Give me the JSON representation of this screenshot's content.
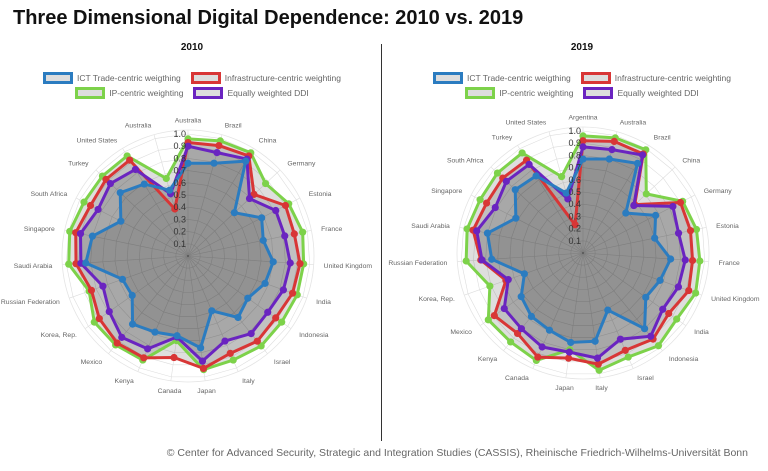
{
  "title": "Three Dimensional Digital Dependence: 2010 vs. 2019",
  "footer": "© Center for Advanced Security, Strategic and Integration Studies (CASSIS), Rheinische Friedrich-Wilhelms-Universität Bonn",
  "legend": [
    {
      "name": "ICT Trade-centric weigthing",
      "color": "#2b7cc0"
    },
    {
      "name": "Infrastructure-centric weighting",
      "color": "#d83636"
    },
    {
      "name": "IP-centric weighting",
      "color": "#7dd24a"
    },
    {
      "name": "Equally weighted DDI",
      "color": "#6a24c0"
    }
  ],
  "chart_data": [
    {
      "type": "radar",
      "title": "2010",
      "rlim": [
        0,
        1.0
      ],
      "ticks": [
        "0.1",
        "0.2",
        "0.3",
        "0.4",
        "0.5",
        "0.6",
        "0.7",
        "0.8",
        "0.9",
        "1.0"
      ],
      "grid": true,
      "legend_position": "top",
      "categories": [
        "Australia",
        "Brazil",
        "China",
        "Germany",
        "Estonia",
        "France",
        "United Kingdom",
        "India",
        "Indonesia",
        "Israel",
        "Italy",
        "Japan",
        "Canada",
        "Kenya",
        "Mexico",
        "Korea, Rep.",
        "Russian Federation",
        "Saudi Arabia",
        "Singapore",
        "South Africa",
        "Turkey",
        "United States",
        "Australia"
      ],
      "series": [
        {
          "name": "IP-centric weighting",
          "color": "#7dd24a",
          "values": [
            0.96,
            0.98,
            0.99,
            0.87,
            0.93,
            0.96,
            0.95,
            0.95,
            0.94,
            0.95,
            0.93,
            0.94,
            0.7,
            0.93,
            0.94,
            0.94,
            0.86,
            0.98,
            0.99,
            0.96,
            0.96,
            0.96,
            0.66
          ]
        },
        {
          "name": "Infrastructure-centric weighting",
          "color": "#d83636",
          "values": [
            0.93,
            0.94,
            0.96,
            0.74,
            0.9,
            0.89,
            0.92,
            0.91,
            0.88,
            0.9,
            0.87,
            0.93,
            0.84,
            0.91,
            0.92,
            0.89,
            0.84,
            0.92,
            0.94,
            0.9,
            0.92,
            0.92,
            0.4
          ]
        },
        {
          "name": "Equally weighted DDI",
          "color": "#6a24c0",
          "values": [
            0.9,
            0.88,
            0.93,
            0.69,
            0.81,
            0.81,
            0.84,
            0.83,
            0.8,
            0.82,
            0.76,
            0.87,
            0.67,
            0.83,
            0.86,
            0.79,
            0.74,
            0.88,
            0.9,
            0.83,
            0.87,
            0.83,
            0.53
          ]
        },
        {
          "name": "ICT Trade-centric weigthing",
          "color": "#2b7cc0",
          "values": [
            0.76,
            0.79,
            0.91,
            0.52,
            0.68,
            0.63,
            0.7,
            0.67,
            0.6,
            0.65,
            0.49,
            0.76,
            0.66,
            0.68,
            0.72,
            0.56,
            0.57,
            0.84,
            0.8,
            0.62,
            0.76,
            0.69,
            0.56
          ]
        }
      ]
    },
    {
      "type": "radar",
      "title": "2019",
      "rlim": [
        0,
        1.0
      ],
      "ticks": [
        "0.1",
        "0.2",
        "0.3",
        "0.4",
        "0.5",
        "0.6",
        "0.7",
        "0.8",
        "0.9",
        "1.0"
      ],
      "grid": true,
      "legend_position": "top",
      "categories": [
        "Argentina",
        "Australia",
        "Brazil",
        "China",
        "Germany",
        "Estonia",
        "France",
        "United Kingdom",
        "India",
        "Indonesia",
        "Israel",
        "Italy",
        "Japan",
        "Canada",
        "Kenya",
        "Mexico",
        "Korea, Rep.",
        "Russian Federation",
        "Saudi Arabia",
        "Singapore",
        "South Africa",
        "Turkey",
        "United States"
      ],
      "series": [
        {
          "name": "IP-centric weighting",
          "color": "#7dd24a",
          "values": [
            0.96,
            0.98,
            0.99,
            0.71,
            0.92,
            0.95,
            0.96,
            0.98,
            0.94,
            0.98,
            0.93,
            0.97,
            0.8,
            0.96,
            0.94,
            0.95,
            0.81,
            0.96,
            0.97,
            0.95,
            0.96,
            0.96,
            0.65
          ]
        },
        {
          "name": "Infrastructure-centric weighting",
          "color": "#d83636",
          "values": [
            0.92,
            0.95,
            0.95,
            0.58,
            0.9,
            0.9,
            0.9,
            0.92,
            0.86,
            0.91,
            0.87,
            0.92,
            0.87,
            0.93,
            0.85,
            0.89,
            0.67,
            0.84,
            0.92,
            0.89,
            0.9,
            0.89,
            0.24
          ]
        },
        {
          "name": "Equally weighted DDI",
          "color": "#6a24c0",
          "values": [
            0.87,
            0.88,
            0.94,
            0.57,
            0.83,
            0.8,
            0.84,
            0.83,
            0.8,
            0.88,
            0.77,
            0.87,
            0.82,
            0.84,
            0.8,
            0.79,
            0.65,
            0.83,
            0.89,
            0.81,
            0.86,
            0.85,
            0.46
          ]
        },
        {
          "name": "ICT Trade-centric weigthing",
          "color": "#2b7cc0",
          "values": [
            0.77,
            0.8,
            0.86,
            0.48,
            0.67,
            0.6,
            0.72,
            0.67,
            0.63,
            0.8,
            0.51,
            0.73,
            0.74,
            0.69,
            0.67,
            0.62,
            0.51,
            0.75,
            0.8,
            0.62,
            0.76,
            0.74,
            0.51
          ]
        }
      ]
    }
  ]
}
